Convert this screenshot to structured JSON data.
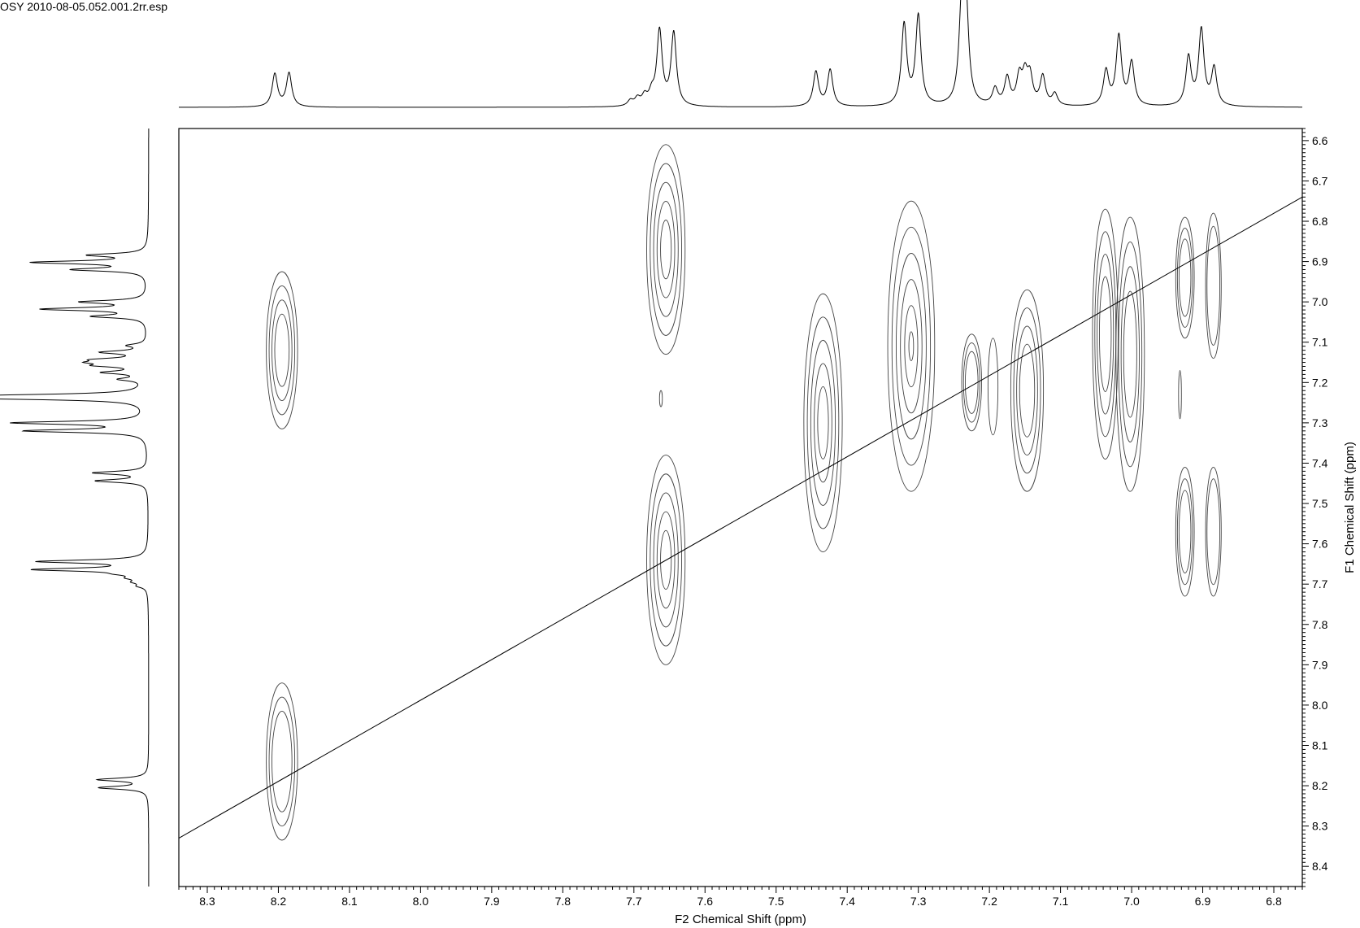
{
  "file_title": "OSY 2010-08-05.052.001.2rr.esp",
  "chart_data": {
    "type": "contour",
    "title": "",
    "xlabel": "F2 Chemical Shift (ppm)",
    "ylabel": "F1 Chemical Shift (ppm)",
    "xlim": [
      8.34,
      6.76
    ],
    "ylim": [
      6.57,
      8.45
    ],
    "x_ticks": [
      "8.3",
      "8.2",
      "8.1",
      "8.0",
      "7.9",
      "7.8",
      "7.7",
      "7.6",
      "7.5",
      "7.4",
      "7.3",
      "7.2",
      "7.1",
      "7.0",
      "6.9",
      "6.8"
    ],
    "y_ticks": [
      "6.6",
      "6.7",
      "6.8",
      "6.9",
      "7.0",
      "7.1",
      "7.2",
      "7.3",
      "7.4",
      "7.5",
      "7.6",
      "7.7",
      "7.8",
      "7.9",
      "8.0",
      "8.1",
      "8.2",
      "8.3",
      "8.4"
    ],
    "diagonal": [
      [
        8.34,
        8.33
      ],
      [
        6.76,
        6.74
      ]
    ],
    "proton_spectrum": {
      "peaks": [
        {
          "ppm": 8.205,
          "intensity": 0.36
        },
        {
          "ppm": 8.185,
          "intensity": 0.37
        },
        {
          "ppm": 7.705,
          "intensity": 0.06
        },
        {
          "ppm": 7.695,
          "intensity": 0.08
        },
        {
          "ppm": 7.685,
          "intensity": 0.1
        },
        {
          "ppm": 7.675,
          "intensity": 0.12
        },
        {
          "ppm": 7.664,
          "intensity": 0.82
        },
        {
          "ppm": 7.644,
          "intensity": 0.8
        },
        {
          "ppm": 7.444,
          "intensity": 0.38
        },
        {
          "ppm": 7.424,
          "intensity": 0.4
        },
        {
          "ppm": 7.32,
          "intensity": 0.89
        },
        {
          "ppm": 7.3,
          "intensity": 0.98
        },
        {
          "ppm": 7.239,
          "intensity": 1.0
        },
        {
          "ppm": 7.233,
          "intensity": 1.02
        },
        {
          "ppm": 7.192,
          "intensity": 0.18
        },
        {
          "ppm": 7.175,
          "intensity": 0.3
        },
        {
          "ppm": 7.158,
          "intensity": 0.3
        },
        {
          "ppm": 7.15,
          "intensity": 0.3
        },
        {
          "ppm": 7.143,
          "intensity": 0.3
        },
        {
          "ppm": 7.125,
          "intensity": 0.32
        },
        {
          "ppm": 7.108,
          "intensity": 0.13
        },
        {
          "ppm": 7.036,
          "intensity": 0.38
        },
        {
          "ppm": 7.018,
          "intensity": 0.76
        },
        {
          "ppm": 7.0,
          "intensity": 0.47
        },
        {
          "ppm": 6.92,
          "intensity": 0.53
        },
        {
          "ppm": 6.902,
          "intensity": 0.83
        },
        {
          "ppm": 6.884,
          "intensity": 0.41
        }
      ]
    },
    "cross_peaks": [
      {
        "x": 8.195,
        "y": 7.12,
        "rx": 0.022,
        "ry": 0.195,
        "levels": 4
      },
      {
        "x": 8.195,
        "y": 8.14,
        "rx": 0.022,
        "ry": 0.195,
        "levels": 3
      },
      {
        "x": 7.655,
        "y": 6.87,
        "rx": 0.027,
        "ry": 0.26,
        "levels": 5
      },
      {
        "x": 7.655,
        "y": 7.64,
        "rx": 0.027,
        "ry": 0.26,
        "levels": 5
      },
      {
        "x": 7.434,
        "y": 7.3,
        "rx": 0.027,
        "ry": 0.32,
        "levels": 5
      },
      {
        "x": 7.31,
        "y": 7.11,
        "rx": 0.033,
        "ry": 0.36,
        "levels": 6
      },
      {
        "x": 7.225,
        "y": 7.2,
        "rx": 0.014,
        "ry": 0.12,
        "levels": 3
      },
      {
        "x": 7.195,
        "y": 7.21,
        "rx": 0.007,
        "ry": 0.12,
        "levels": 1
      },
      {
        "x": 7.147,
        "y": 7.22,
        "rx": 0.023,
        "ry": 0.25,
        "levels": 4
      },
      {
        "x": 7.037,
        "y": 7.08,
        "rx": 0.018,
        "ry": 0.31,
        "levels": 4
      },
      {
        "x": 7.002,
        "y": 7.13,
        "rx": 0.02,
        "ry": 0.34,
        "levels": 4
      },
      {
        "x": 6.925,
        "y": 6.94,
        "rx": 0.013,
        "ry": 0.15,
        "levels": 3
      },
      {
        "x": 6.885,
        "y": 6.96,
        "rx": 0.011,
        "ry": 0.18,
        "levels": 2
      },
      {
        "x": 6.925,
        "y": 7.57,
        "rx": 0.013,
        "ry": 0.16,
        "levels": 3
      },
      {
        "x": 6.885,
        "y": 7.57,
        "rx": 0.011,
        "ry": 0.16,
        "levels": 2
      },
      {
        "x": 7.662,
        "y": 7.24,
        "rx": 0.002,
        "ry": 0.02,
        "levels": 1
      },
      {
        "x": 6.932,
        "y": 7.23,
        "rx": 0.002,
        "ry": 0.06,
        "levels": 1
      }
    ]
  }
}
